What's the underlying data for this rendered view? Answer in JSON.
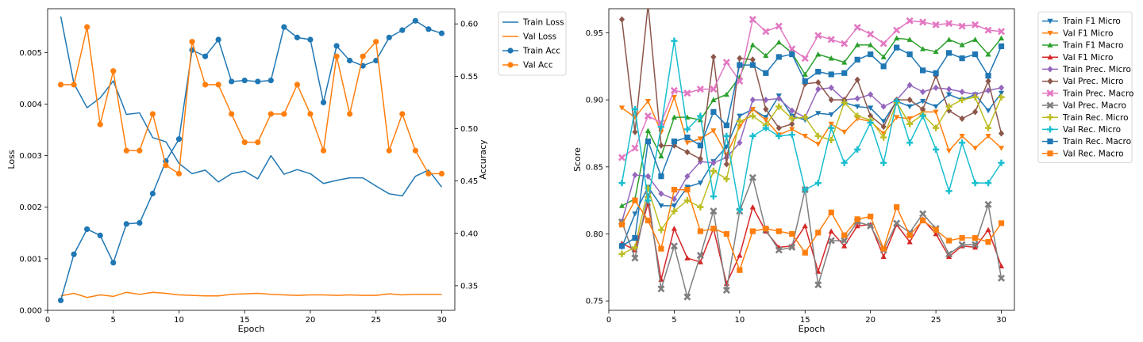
{
  "chart_data": [
    {
      "type": "line",
      "xlabel": "Epoch",
      "ylabel": "Loss",
      "y2label": "Accuracy",
      "xlim": [
        0,
        31
      ],
      "ylim": [
        0,
        0.00585
      ],
      "y2lim": [
        0.3265,
        0.6145
      ],
      "x_ticks": [
        0,
        5,
        10,
        15,
        20,
        25,
        30
      ],
      "y_ticks": [
        0.0,
        0.001,
        0.002,
        0.003,
        0.004,
        0.005
      ],
      "y_tick_labels": [
        "0.000",
        "0.001",
        "0.002",
        "0.003",
        "0.004",
        "0.005"
      ],
      "y2_ticks": [
        0.35,
        0.4,
        0.45,
        0.5,
        0.55,
        0.6
      ],
      "y2_tick_labels": [
        "0.35",
        "0.40",
        "0.45",
        "0.50",
        "0.55",
        "0.60"
      ],
      "legend_position": "outside right, top",
      "x": [
        1,
        2,
        3,
        4,
        5,
        6,
        7,
        8,
        9,
        10,
        11,
        12,
        13,
        14,
        15,
        16,
        17,
        18,
        19,
        20,
        21,
        22,
        23,
        24,
        25,
        26,
        27,
        28,
        29,
        30
      ],
      "series": [
        {
          "name": "Train Loss",
          "axis": "left",
          "color": "#1f77b4",
          "marker": "none",
          "values": [
            0.0057,
            0.0044,
            0.00393,
            0.00412,
            0.00445,
            0.0038,
            0.00383,
            0.00335,
            0.00327,
            0.00285,
            0.00265,
            0.00272,
            0.00249,
            0.00265,
            0.0027,
            0.00255,
            0.003,
            0.00264,
            0.00273,
            0.00265,
            0.00246,
            0.00252,
            0.00257,
            0.00257,
            0.00241,
            0.00226,
            0.00222,
            0.0026,
            0.00272,
            0.00239
          ]
        },
        {
          "name": "Val Loss",
          "axis": "left",
          "color": "#ff7f0e",
          "marker": "none",
          "values": [
            0.00028,
            0.00033,
            0.00025,
            0.0003,
            0.00027,
            0.00035,
            0.00031,
            0.00035,
            0.00033,
            0.0003,
            0.00029,
            0.00028,
            0.00028,
            0.00031,
            0.00032,
            0.00033,
            0.00031,
            0.0003,
            0.00029,
            0.0003,
            0.0003,
            0.00029,
            0.0003,
            0.00029,
            0.00029,
            0.00032,
            0.0003,
            0.00031,
            0.00031,
            0.00031
          ]
        },
        {
          "name": "Train Acc",
          "axis": "right",
          "color": "#1f77b4",
          "marker": "circle",
          "values": [
            0.336,
            0.38,
            0.404,
            0.398,
            0.372,
            0.409,
            0.41,
            0.438,
            0.469,
            0.49,
            0.575,
            0.569,
            0.585,
            0.545,
            0.546,
            0.545,
            0.546,
            0.597,
            0.587,
            0.585,
            0.525,
            0.579,
            0.565,
            0.56,
            0.565,
            0.587,
            0.594,
            0.603,
            0.595,
            0.591
          ]
        },
        {
          "name": "Val Acc",
          "axis": "right",
          "color": "#ff7f0e",
          "marker": "circle",
          "values": [
            0.542,
            0.542,
            0.597,
            0.504,
            0.555,
            0.479,
            0.479,
            0.514,
            0.465,
            0.457,
            0.583,
            0.542,
            0.542,
            0.514,
            0.487,
            0.487,
            0.514,
            0.514,
            0.542,
            0.514,
            0.479,
            0.569,
            0.514,
            0.569,
            0.583,
            0.479,
            0.514,
            0.479,
            0.457,
            0.457
          ]
        }
      ]
    },
    {
      "type": "line",
      "xlabel": "Epoch",
      "ylabel": "Score",
      "xlim": [
        0,
        31
      ],
      "ylim": [
        0.743,
        0.968
      ],
      "x_ticks": [
        0,
        5,
        10,
        15,
        20,
        25,
        30
      ],
      "y_ticks": [
        0.75,
        0.8,
        0.85,
        0.9,
        0.95
      ],
      "y_tick_labels": [
        "0.75",
        "0.80",
        "0.85",
        "0.90",
        "0.95"
      ],
      "legend_position": "outside right, top",
      "x": [
        1,
        2,
        3,
        4,
        5,
        6,
        7,
        8,
        9,
        10,
        11,
        12,
        13,
        14,
        15,
        16,
        17,
        18,
        19,
        20,
        21,
        22,
        23,
        24,
        25,
        26,
        27,
        28,
        29,
        30
      ],
      "series": [
        {
          "name": "Train F1 Micro",
          "color": "#1f77b4",
          "marker": "tri_down",
          "values": [
            0.79,
            0.815,
            0.835,
            0.821,
            0.821,
            0.835,
            0.838,
            0.854,
            0.865,
            0.888,
            0.893,
            0.887,
            0.903,
            0.888,
            0.885,
            0.89,
            0.889,
            0.898,
            0.895,
            0.894,
            0.884,
            0.899,
            0.895,
            0.899,
            0.895,
            0.904,
            0.9,
            0.904,
            0.892,
            0.905
          ]
        },
        {
          "name": "Val F1 Micro",
          "color": "#ff7f0e",
          "marker": "tri_down",
          "values": [
            0.894,
            0.887,
            0.899,
            0.876,
            0.902,
            0.868,
            0.871,
            0.877,
            0.859,
            0.88,
            0.893,
            0.885,
            0.874,
            0.878,
            0.873,
            0.867,
            0.882,
            0.876,
            0.886,
            0.884,
            0.875,
            0.887,
            0.886,
            0.891,
            0.891,
            0.862,
            0.873,
            0.864,
            0.873,
            0.864
          ]
        },
        {
          "name": "Train F1 Macro",
          "color": "#2ca02c",
          "marker": "tri_up",
          "values": [
            0.821,
            0.826,
            0.877,
            0.858,
            0.887,
            0.887,
            0.885,
            0.9,
            0.904,
            0.917,
            0.941,
            0.933,
            0.943,
            0.935,
            0.919,
            0.934,
            0.931,
            0.928,
            0.941,
            0.941,
            0.932,
            0.946,
            0.945,
            0.938,
            0.936,
            0.945,
            0.941,
            0.945,
            0.934,
            0.946
          ]
        },
        {
          "name": "Val F1 Micro",
          "color": "#d62728",
          "marker": "tri_up",
          "values": [
            0.793,
            0.788,
            0.823,
            0.766,
            0.804,
            0.782,
            0.779,
            0.804,
            0.763,
            0.784,
            0.82,
            0.802,
            0.79,
            0.791,
            0.806,
            0.772,
            0.802,
            0.791,
            0.806,
            0.807,
            0.783,
            0.807,
            0.794,
            0.811,
            0.8,
            0.783,
            0.791,
            0.79,
            0.803,
            0.776
          ]
        },
        {
          "name": "Train Prec. Micro",
          "color": "#9467bd",
          "marker": "diamond",
          "values": [
            0.809,
            0.844,
            0.843,
            0.83,
            0.826,
            0.843,
            0.854,
            0.853,
            0.857,
            0.868,
            0.9,
            0.9,
            0.901,
            0.892,
            0.887,
            0.908,
            0.909,
            0.9,
            0.901,
            0.904,
            0.895,
            0.9,
            0.911,
            0.906,
            0.909,
            0.908,
            0.906,
            0.904,
            0.907,
            0.909
          ]
        },
        {
          "name": "Val Prec. Micro",
          "color": "#8c564b",
          "marker": "diamond",
          "values": [
            0.96,
            0.876,
            0.971,
            0.866,
            0.866,
            0.861,
            0.856,
            0.932,
            0.852,
            0.931,
            0.93,
            0.893,
            0.879,
            0.882,
            0.912,
            0.913,
            0.9,
            0.9,
            0.915,
            0.888,
            0.88,
            0.9,
            0.9,
            0.893,
            0.918,
            0.892,
            0.886,
            0.891,
            0.914,
            0.875
          ]
        },
        {
          "name": "Train Prec. Macro",
          "color": "#e377c2",
          "marker": "x",
          "values": [
            0.857,
            0.864,
            0.888,
            0.883,
            0.907,
            0.905,
            0.908,
            0.908,
            0.928,
            0.914,
            0.96,
            0.951,
            0.955,
            0.938,
            0.931,
            0.948,
            0.945,
            0.942,
            0.954,
            0.949,
            0.942,
            0.952,
            0.959,
            0.958,
            0.956,
            0.957,
            0.955,
            0.956,
            0.952,
            0.951
          ]
        },
        {
          "name": "Val Prec. Macro",
          "color": "#7f7f7f",
          "marker": "x",
          "values": [
            0.809,
            0.782,
            0.829,
            0.759,
            0.791,
            0.753,
            0.784,
            0.817,
            0.758,
            0.817,
            0.842,
            0.803,
            0.788,
            0.79,
            0.833,
            0.762,
            0.795,
            0.795,
            0.809,
            0.806,
            0.788,
            0.808,
            0.801,
            0.815,
            0.804,
            0.785,
            0.792,
            0.792,
            0.822,
            0.767
          ]
        },
        {
          "name": "Train Rec. Micro",
          "color": "#bcbd22",
          "marker": "plus",
          "values": [
            0.785,
            0.79,
            0.834,
            0.803,
            0.817,
            0.825,
            0.82,
            0.847,
            0.841,
            0.884,
            0.888,
            0.881,
            0.895,
            0.886,
            0.887,
            0.873,
            0.87,
            0.898,
            0.888,
            0.885,
            0.872,
            0.898,
            0.882,
            0.889,
            0.879,
            0.895,
            0.9,
            0.902,
            0.879,
            0.902
          ]
        },
        {
          "name": "Val Rec. Micro",
          "color": "#17becf",
          "marker": "plus",
          "values": [
            0.838,
            0.893,
            0.825,
            0.88,
            0.944,
            0.878,
            0.888,
            0.828,
            0.873,
            0.818,
            0.873,
            0.879,
            0.873,
            0.874,
            0.833,
            0.838,
            0.879,
            0.853,
            0.863,
            0.883,
            0.853,
            0.899,
            0.868,
            0.888,
            0.863,
            0.832,
            0.868,
            0.838,
            0.838,
            0.853
          ]
        },
        {
          "name": "Train Rec. Macro",
          "color": "#1f77b4",
          "marker": "square",
          "values": [
            0.791,
            0.797,
            0.869,
            0.843,
            0.869,
            0.872,
            0.866,
            0.891,
            0.881,
            0.926,
            0.926,
            0.92,
            0.932,
            0.934,
            0.914,
            0.921,
            0.919,
            0.92,
            0.93,
            0.934,
            0.925,
            0.939,
            0.934,
            0.922,
            0.92,
            0.935,
            0.931,
            0.934,
            0.918,
            0.94
          ]
        },
        {
          "name": "Val Rec. Macro",
          "color": "#ff7f0e",
          "marker": "square",
          "values": [
            0.807,
            0.825,
            0.81,
            0.789,
            0.833,
            0.833,
            0.802,
            0.804,
            0.8,
            0.773,
            0.802,
            0.804,
            0.802,
            0.8,
            0.786,
            0.801,
            0.816,
            0.799,
            0.811,
            0.813,
            0.789,
            0.82,
            0.799,
            0.81,
            0.803,
            0.795,
            0.797,
            0.797,
            0.794,
            0.808
          ]
        }
      ]
    }
  ]
}
